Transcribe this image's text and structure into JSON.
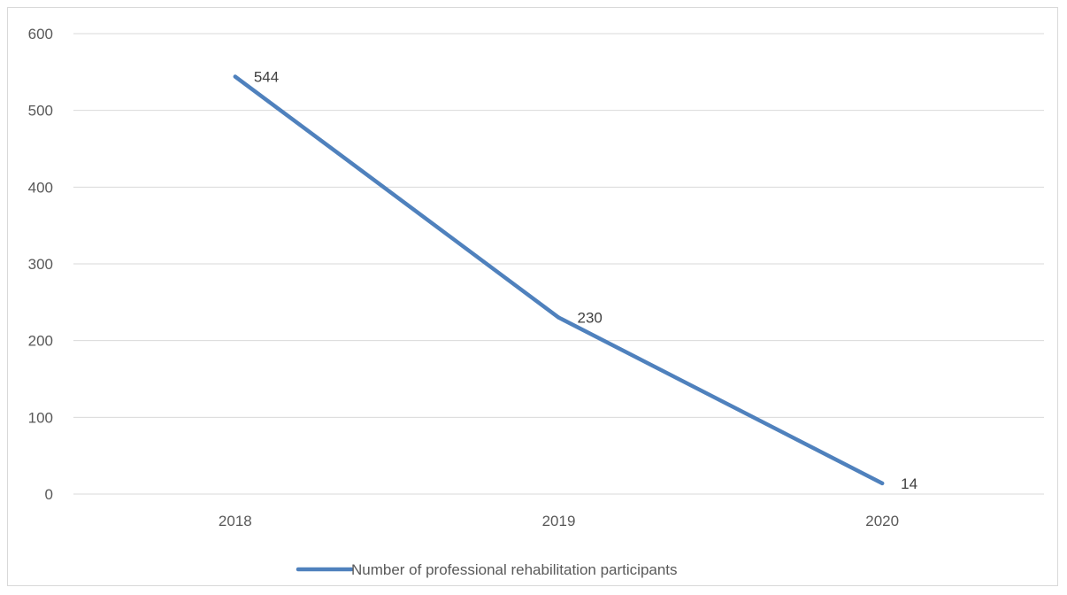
{
  "chart_data": {
    "type": "line",
    "categories": [
      "2018",
      "2019",
      "2020"
    ],
    "series": [
      {
        "name": "Number of professional rehabilitation participants",
        "values": [
          544,
          230,
          14
        ]
      }
    ],
    "ylim": [
      0,
      600
    ],
    "yticks": [
      0,
      100,
      200,
      300,
      400,
      500,
      600
    ],
    "grid": true,
    "legend": "bottom",
    "data_labels": true,
    "colors": {
      "series": "#4f81bd",
      "grid": "#d9d9d9",
      "text": "#595959",
      "border": "#d9d9d9"
    }
  }
}
